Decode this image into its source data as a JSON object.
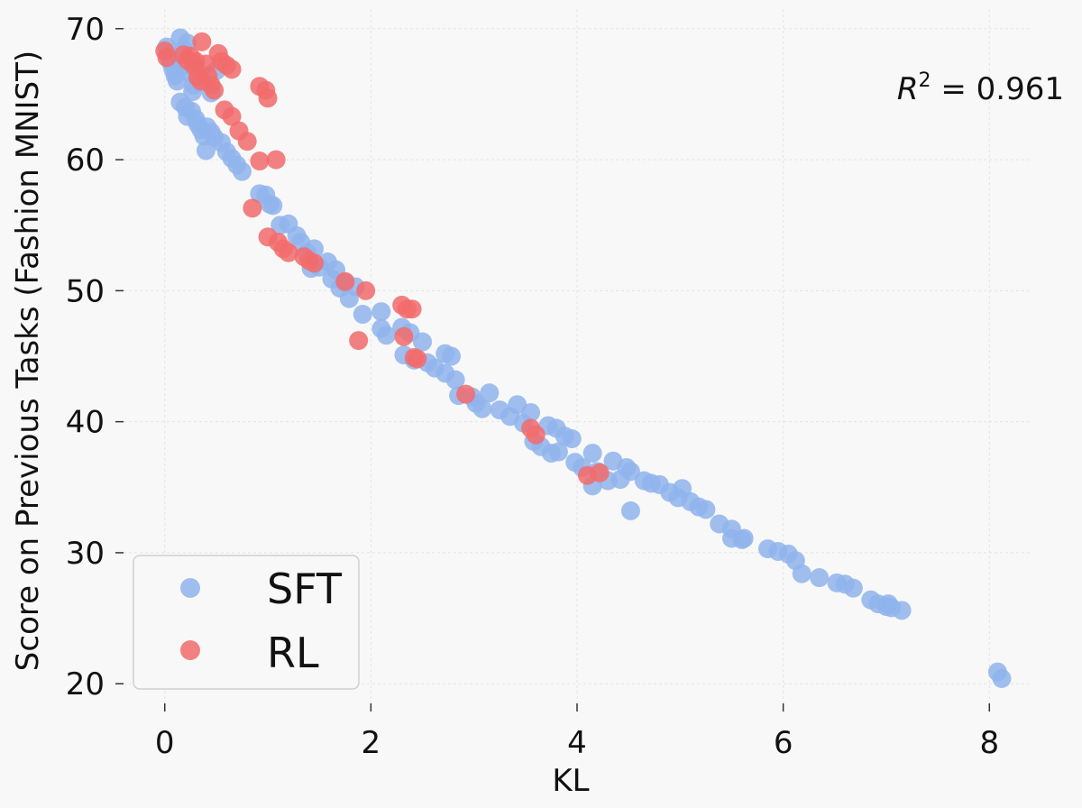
{
  "chart_data": {
    "type": "scatter",
    "title": "",
    "xlabel": "KL",
    "ylabel": "Score on Previous Tasks (Fashion MNIST)",
    "xlim": [
      -0.4,
      8.4
    ],
    "ylim": [
      18.5,
      71.5
    ],
    "xticks": [
      0,
      2,
      4,
      6,
      8
    ],
    "yticks": [
      20,
      30,
      40,
      50,
      60,
      70
    ],
    "grid": true,
    "legend_position": "bottom-left",
    "annotation": {
      "prefix": "R",
      "sup": "2",
      "suffix": " = 0.961"
    },
    "series": [
      {
        "name": "SFT",
        "color": "#8fb4ec",
        "points": [
          [
            0.02,
            68.6
          ],
          [
            0.04,
            67.9
          ],
          [
            0.06,
            67.4
          ],
          [
            0.08,
            66.9
          ],
          [
            0.1,
            66.4
          ],
          [
            0.12,
            66.0
          ],
          [
            0.15,
            69.3
          ],
          [
            0.18,
            68.4
          ],
          [
            0.2,
            67.2
          ],
          [
            0.22,
            68.9
          ],
          [
            0.25,
            66.6
          ],
          [
            0.27,
            65.2
          ],
          [
            0.15,
            64.4
          ],
          [
            0.2,
            64.0
          ],
          [
            0.22,
            63.3
          ],
          [
            0.26,
            63.7
          ],
          [
            0.3,
            63.1
          ],
          [
            0.32,
            62.7
          ],
          [
            0.35,
            62.3
          ],
          [
            0.38,
            61.8
          ],
          [
            0.41,
            62.5
          ],
          [
            0.45,
            62.1
          ],
          [
            0.48,
            61.7
          ],
          [
            0.55,
            61.3
          ],
          [
            0.4,
            60.7
          ],
          [
            0.6,
            60.6
          ],
          [
            0.65,
            60.1
          ],
          [
            0.7,
            59.6
          ],
          [
            0.75,
            59.1
          ],
          [
            0.3,
            67.0
          ],
          [
            0.35,
            66.3
          ],
          [
            0.45,
            65.1
          ],
          [
            0.5,
            66.8
          ],
          [
            0.28,
            65.7
          ],
          [
            0.92,
            57.4
          ],
          [
            0.98,
            57.3
          ],
          [
            1.02,
            56.6
          ],
          [
            1.05,
            56.5
          ],
          [
            1.12,
            55.0
          ],
          [
            1.2,
            55.1
          ],
          [
            1.28,
            54.2
          ],
          [
            1.32,
            53.7
          ],
          [
            1.38,
            52.9
          ],
          [
            1.45,
            53.2
          ],
          [
            1.42,
            51.7
          ],
          [
            1.5,
            51.8
          ],
          [
            1.58,
            52.2
          ],
          [
            1.62,
            50.9
          ],
          [
            1.66,
            51.6
          ],
          [
            1.7,
            50.2
          ],
          [
            1.75,
            50.6
          ],
          [
            1.79,
            49.4
          ],
          [
            1.85,
            50.3
          ],
          [
            1.92,
            48.2
          ],
          [
            2.1,
            48.4
          ],
          [
            2.1,
            47.1
          ],
          [
            2.15,
            46.6
          ],
          [
            2.3,
            47.2
          ],
          [
            2.38,
            46.8
          ],
          [
            2.32,
            45.1
          ],
          [
            2.42,
            44.7
          ],
          [
            2.5,
            46.1
          ],
          [
            2.55,
            44.5
          ],
          [
            2.62,
            44.1
          ],
          [
            2.72,
            45.2
          ],
          [
            2.78,
            45.0
          ],
          [
            2.72,
            43.7
          ],
          [
            2.82,
            43.2
          ],
          [
            2.85,
            42.0
          ],
          [
            2.98,
            41.9
          ],
          [
            3.02,
            41.4
          ],
          [
            3.08,
            41.0
          ],
          [
            3.15,
            42.2
          ],
          [
            3.25,
            40.9
          ],
          [
            3.35,
            40.4
          ],
          [
            3.42,
            41.3
          ],
          [
            3.48,
            39.9
          ],
          [
            3.55,
            40.7
          ],
          [
            3.58,
            38.5
          ],
          [
            3.65,
            38.1
          ],
          [
            3.72,
            39.7
          ],
          [
            3.8,
            39.5
          ],
          [
            3.75,
            37.6
          ],
          [
            3.82,
            37.7
          ],
          [
            3.88,
            38.9
          ],
          [
            3.95,
            38.7
          ],
          [
            3.98,
            36.9
          ],
          [
            4.05,
            36.5
          ],
          [
            4.15,
            37.6
          ],
          [
            4.15,
            35.1
          ],
          [
            4.2,
            36.2
          ],
          [
            4.3,
            35.5
          ],
          [
            4.35,
            37.0
          ],
          [
            4.42,
            35.6
          ],
          [
            4.48,
            36.5
          ],
          [
            4.52,
            36.2
          ],
          [
            4.52,
            33.2
          ],
          [
            4.65,
            35.5
          ],
          [
            4.72,
            35.3
          ],
          [
            4.8,
            35.2
          ],
          [
            4.9,
            34.6
          ],
          [
            4.98,
            34.2
          ],
          [
            5.02,
            34.9
          ],
          [
            5.1,
            33.9
          ],
          [
            5.18,
            33.5
          ],
          [
            5.25,
            33.3
          ],
          [
            5.38,
            32.2
          ],
          [
            5.5,
            31.8
          ],
          [
            5.5,
            31.1
          ],
          [
            5.6,
            31.0
          ],
          [
            5.62,
            31.1
          ],
          [
            5.85,
            30.3
          ],
          [
            5.95,
            30.1
          ],
          [
            6.05,
            29.9
          ],
          [
            6.12,
            29.4
          ],
          [
            6.18,
            28.4
          ],
          [
            6.35,
            28.1
          ],
          [
            6.52,
            27.7
          ],
          [
            6.6,
            27.6
          ],
          [
            6.68,
            27.3
          ],
          [
            6.85,
            26.4
          ],
          [
            6.92,
            26.1
          ],
          [
            7.0,
            25.9
          ],
          [
            7.05,
            25.8
          ],
          [
            7.02,
            26.1
          ],
          [
            7.15,
            25.6
          ],
          [
            8.08,
            20.9
          ],
          [
            8.12,
            20.4
          ]
        ]
      },
      {
        "name": "RL",
        "color": "#f26b6b",
        "points": [
          [
            0.0,
            68.3
          ],
          [
            0.02,
            67.8
          ],
          [
            0.18,
            68.0
          ],
          [
            0.22,
            67.6
          ],
          [
            0.25,
            67.9
          ],
          [
            0.28,
            67.2
          ],
          [
            0.3,
            67.5
          ],
          [
            0.32,
            66.3
          ],
          [
            0.35,
            66.0
          ],
          [
            0.36,
            69.0
          ],
          [
            0.4,
            67.3
          ],
          [
            0.42,
            66.4
          ],
          [
            0.45,
            65.7
          ],
          [
            0.48,
            65.3
          ],
          [
            0.52,
            68.1
          ],
          [
            0.55,
            67.5
          ],
          [
            0.6,
            67.2
          ],
          [
            0.65,
            66.9
          ],
          [
            0.58,
            63.8
          ],
          [
            0.65,
            63.3
          ],
          [
            0.72,
            62.2
          ],
          [
            0.8,
            61.4
          ],
          [
            0.92,
            65.6
          ],
          [
            0.98,
            65.3
          ],
          [
            1.0,
            64.7
          ],
          [
            0.92,
            59.9
          ],
          [
            1.08,
            60.0
          ],
          [
            0.85,
            56.3
          ],
          [
            1.0,
            54.1
          ],
          [
            1.1,
            53.7
          ],
          [
            1.15,
            53.2
          ],
          [
            1.2,
            52.9
          ],
          [
            1.35,
            52.6
          ],
          [
            1.4,
            52.3
          ],
          [
            1.45,
            52.1
          ],
          [
            1.75,
            50.7
          ],
          [
            1.95,
            50.0
          ],
          [
            1.88,
            46.2
          ],
          [
            2.3,
            48.9
          ],
          [
            2.35,
            48.6
          ],
          [
            2.4,
            48.6
          ],
          [
            2.32,
            46.5
          ],
          [
            2.42,
            44.9
          ],
          [
            2.45,
            44.8
          ],
          [
            2.92,
            42.1
          ],
          [
            3.55,
            39.5
          ],
          [
            3.6,
            39.0
          ],
          [
            4.1,
            35.9
          ],
          [
            4.22,
            36.1
          ]
        ]
      }
    ]
  }
}
